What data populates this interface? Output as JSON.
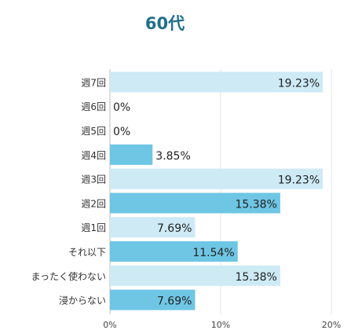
{
  "chart_data": {
    "type": "bar",
    "orientation": "horizontal",
    "title": "60代",
    "categories": [
      "週7回",
      "週6回",
      "週5回",
      "週4回",
      "週3回",
      "週2回",
      "週1回",
      "それ以下",
      "まったく使わない",
      "浸からない"
    ],
    "values": [
      19.23,
      0,
      0,
      3.85,
      19.23,
      15.38,
      7.69,
      11.54,
      15.38,
      7.69
    ],
    "value_labels": [
      "19.23%",
      "0%",
      "0%",
      "3.85%",
      "19.23%",
      "15.38%",
      "7.69%",
      "11.54%",
      "15.38%",
      "7.69%"
    ],
    "xlim": [
      0,
      20
    ],
    "xticks": [
      0,
      10,
      20
    ],
    "xtick_labels": [
      "0%",
      "10%",
      "20%"
    ],
    "grid": "vertical",
    "colors": [
      "#cdeaf5",
      "#6ec6e4",
      "#cdeaf5",
      "#6ec6e4",
      "#cdeaf5",
      "#6ec6e4",
      "#cdeaf5",
      "#6ec6e4",
      "#cdeaf5",
      "#6ec6e4"
    ]
  }
}
